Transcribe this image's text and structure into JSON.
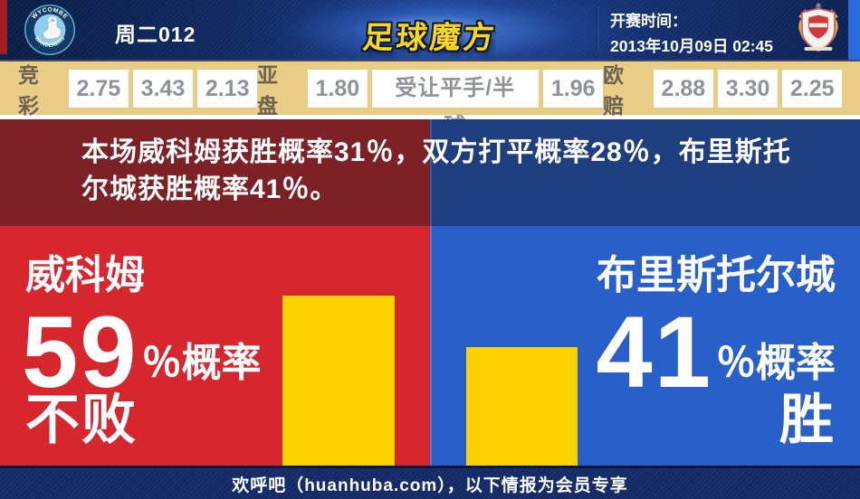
{
  "header": {
    "match_label": "周二012",
    "logo_text": "足球魔方",
    "kickoff_label": "开赛时间：",
    "kickoff_datetime": "2013年10月09日 02:45",
    "home_badge": {
      "top_text": "WYCOMBE",
      "bottom_text": "WANDERERS"
    }
  },
  "odds": {
    "jingcai": {
      "label": "竞彩",
      "values": [
        "2.75",
        "3.43",
        "2.13"
      ]
    },
    "yapan": {
      "label": "亚盘",
      "home": "1.80",
      "handicap": "受让平手/半球",
      "away": "1.96"
    },
    "oupei": {
      "label": "欧赔",
      "values": [
        "2.88",
        "3.30",
        "2.25"
      ]
    }
  },
  "analysis": {
    "line1": "本场威科姆获胜概率31％，双方打平概率28％，布里斯托",
    "line2": "尔城获胜概率41％。"
  },
  "home_stat": {
    "team": "威科姆",
    "value": "59",
    "unit": "％概率",
    "outcome": "不败"
  },
  "away_stat": {
    "team": "布里斯托尔城",
    "value": "41",
    "unit": "％概率",
    "outcome": "胜"
  },
  "footer": {
    "text": "欢呼吧（huanhuba.com），以下情报为会员专享"
  },
  "colors": {
    "home_red": "#d6272e",
    "home_dark_red": "#7c2125",
    "away_blue": "#285fc8",
    "away_dark_blue": "#1e3e7e",
    "bar_yellow": "#fcd202",
    "odds_bar_bg": "#e9cc85",
    "logo_yellow": "#ffd61a"
  },
  "chart_data": {
    "type": "bar",
    "categories": [
      "威科姆不败",
      "布里斯托尔城胜"
    ],
    "values": [
      59,
      41
    ],
    "unit": "%",
    "pixels_per_percent": 3.19
  }
}
